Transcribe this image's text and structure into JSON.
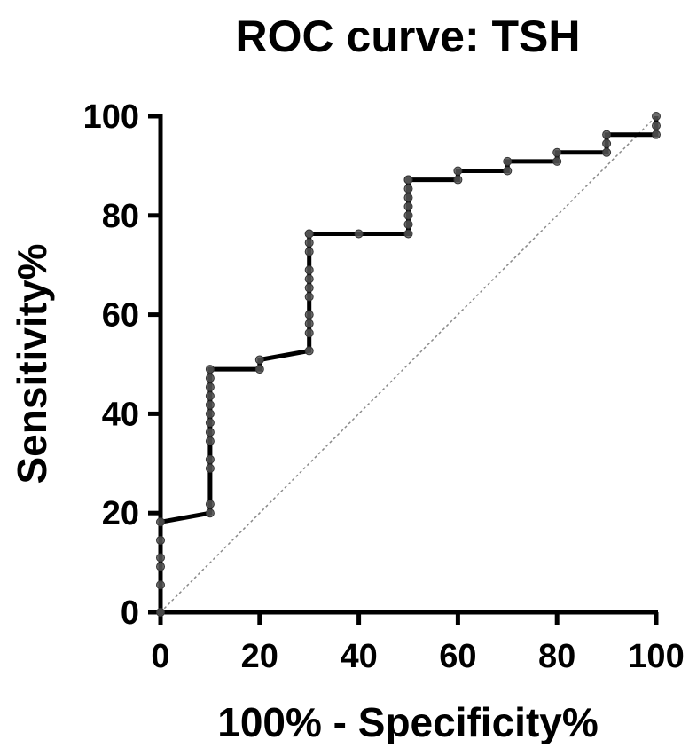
{
  "chart_data": {
    "type": "line",
    "title": "ROC curve: TSH",
    "xlabel": "100% - Specificity%",
    "ylabel": "Sensitivity%",
    "xlim": [
      0,
      100
    ],
    "ylim": [
      0,
      100
    ],
    "x_ticks": [
      "0",
      "20",
      "40",
      "60",
      "80",
      "100"
    ],
    "y_ticks": [
      "0",
      "20",
      "40",
      "60",
      "80",
      "100"
    ],
    "grid": false,
    "legend": "none",
    "series": [
      {
        "style": "step-line-with-points",
        "color": "#000000",
        "marker_color": "#555555",
        "x": [
          0,
          0,
          0,
          0,
          0,
          0,
          10,
          10,
          10,
          10,
          10,
          10,
          10,
          10,
          10,
          10,
          10,
          10,
          10,
          20,
          20,
          30,
          30,
          30,
          30,
          30,
          30,
          30,
          30,
          30,
          30,
          30,
          30,
          40,
          50,
          50,
          50,
          50,
          50,
          50,
          50,
          50,
          60,
          60,
          70,
          70,
          80,
          80,
          90,
          90,
          90,
          100,
          100,
          100
        ],
        "y": [
          0,
          5.5,
          9.2,
          11,
          14.5,
          18.2,
          20,
          21.8,
          29,
          30.8,
          34.5,
          36.3,
          38.2,
          40,
          41.8,
          43.6,
          45.4,
          47.2,
          49,
          49,
          50.9,
          52.7,
          56.3,
          58.2,
          60,
          63.6,
          65.4,
          67.2,
          69,
          72.7,
          74.5,
          76.3,
          76.3,
          76.3,
          76.3,
          78.2,
          80,
          81.8,
          83.6,
          85.4,
          87.2,
          87.2,
          87.2,
          89,
          89,
          90.9,
          90.9,
          92.7,
          92.7,
          94.5,
          96.3,
          96.3,
          98.1,
          100
        ]
      },
      {
        "style": "dotted-diagonal",
        "color": "#8a8a8a",
        "x": [
          0,
          100
        ],
        "y": [
          0,
          100
        ]
      }
    ]
  }
}
